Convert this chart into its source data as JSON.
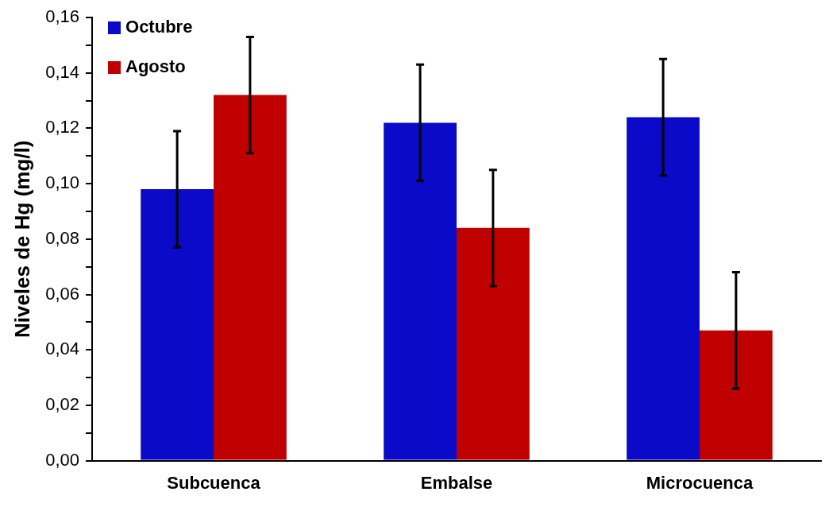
{
  "chart_data": {
    "type": "bar",
    "ylabel": "Niveles de Hg (mg/l)",
    "categories": [
      "Subcuenca",
      "Embalse",
      "Microcuenca"
    ],
    "series": [
      {
        "name": "Octubre",
        "color": "#0a0ac8",
        "values": [
          0.098,
          0.122,
          0.124
        ],
        "errors": [
          0.021,
          0.021,
          0.021
        ]
      },
      {
        "name": "Agosto",
        "color": "#c00000",
        "values": [
          0.132,
          0.084,
          0.047
        ],
        "errors": [
          0.021,
          0.021,
          0.021
        ]
      }
    ],
    "ylim": [
      0,
      0.16
    ],
    "yticks": [
      {
        "value": 0,
        "label": "0,00"
      },
      {
        "value": 0.01,
        "label": null
      },
      {
        "value": 0.02,
        "label": "0,02"
      },
      {
        "value": 0.03,
        "label": null
      },
      {
        "value": 0.04,
        "label": "0,04"
      },
      {
        "value": 0.05,
        "label": null
      },
      {
        "value": 0.06,
        "label": "0,06"
      },
      {
        "value": 0.07,
        "label": null
      },
      {
        "value": 0.08,
        "label": "0,08"
      },
      {
        "value": 0.09,
        "label": null
      },
      {
        "value": 0.1,
        "label": "0,10"
      },
      {
        "value": 0.11,
        "label": null
      },
      {
        "value": 0.12,
        "label": "0,12"
      },
      {
        "value": 0.13,
        "label": null
      },
      {
        "value": 0.14,
        "label": "0,14"
      },
      {
        "value": 0.15,
        "label": null
      },
      {
        "value": 0.16,
        "label": "0,16"
      }
    ],
    "grid": false,
    "legend": "top left"
  }
}
